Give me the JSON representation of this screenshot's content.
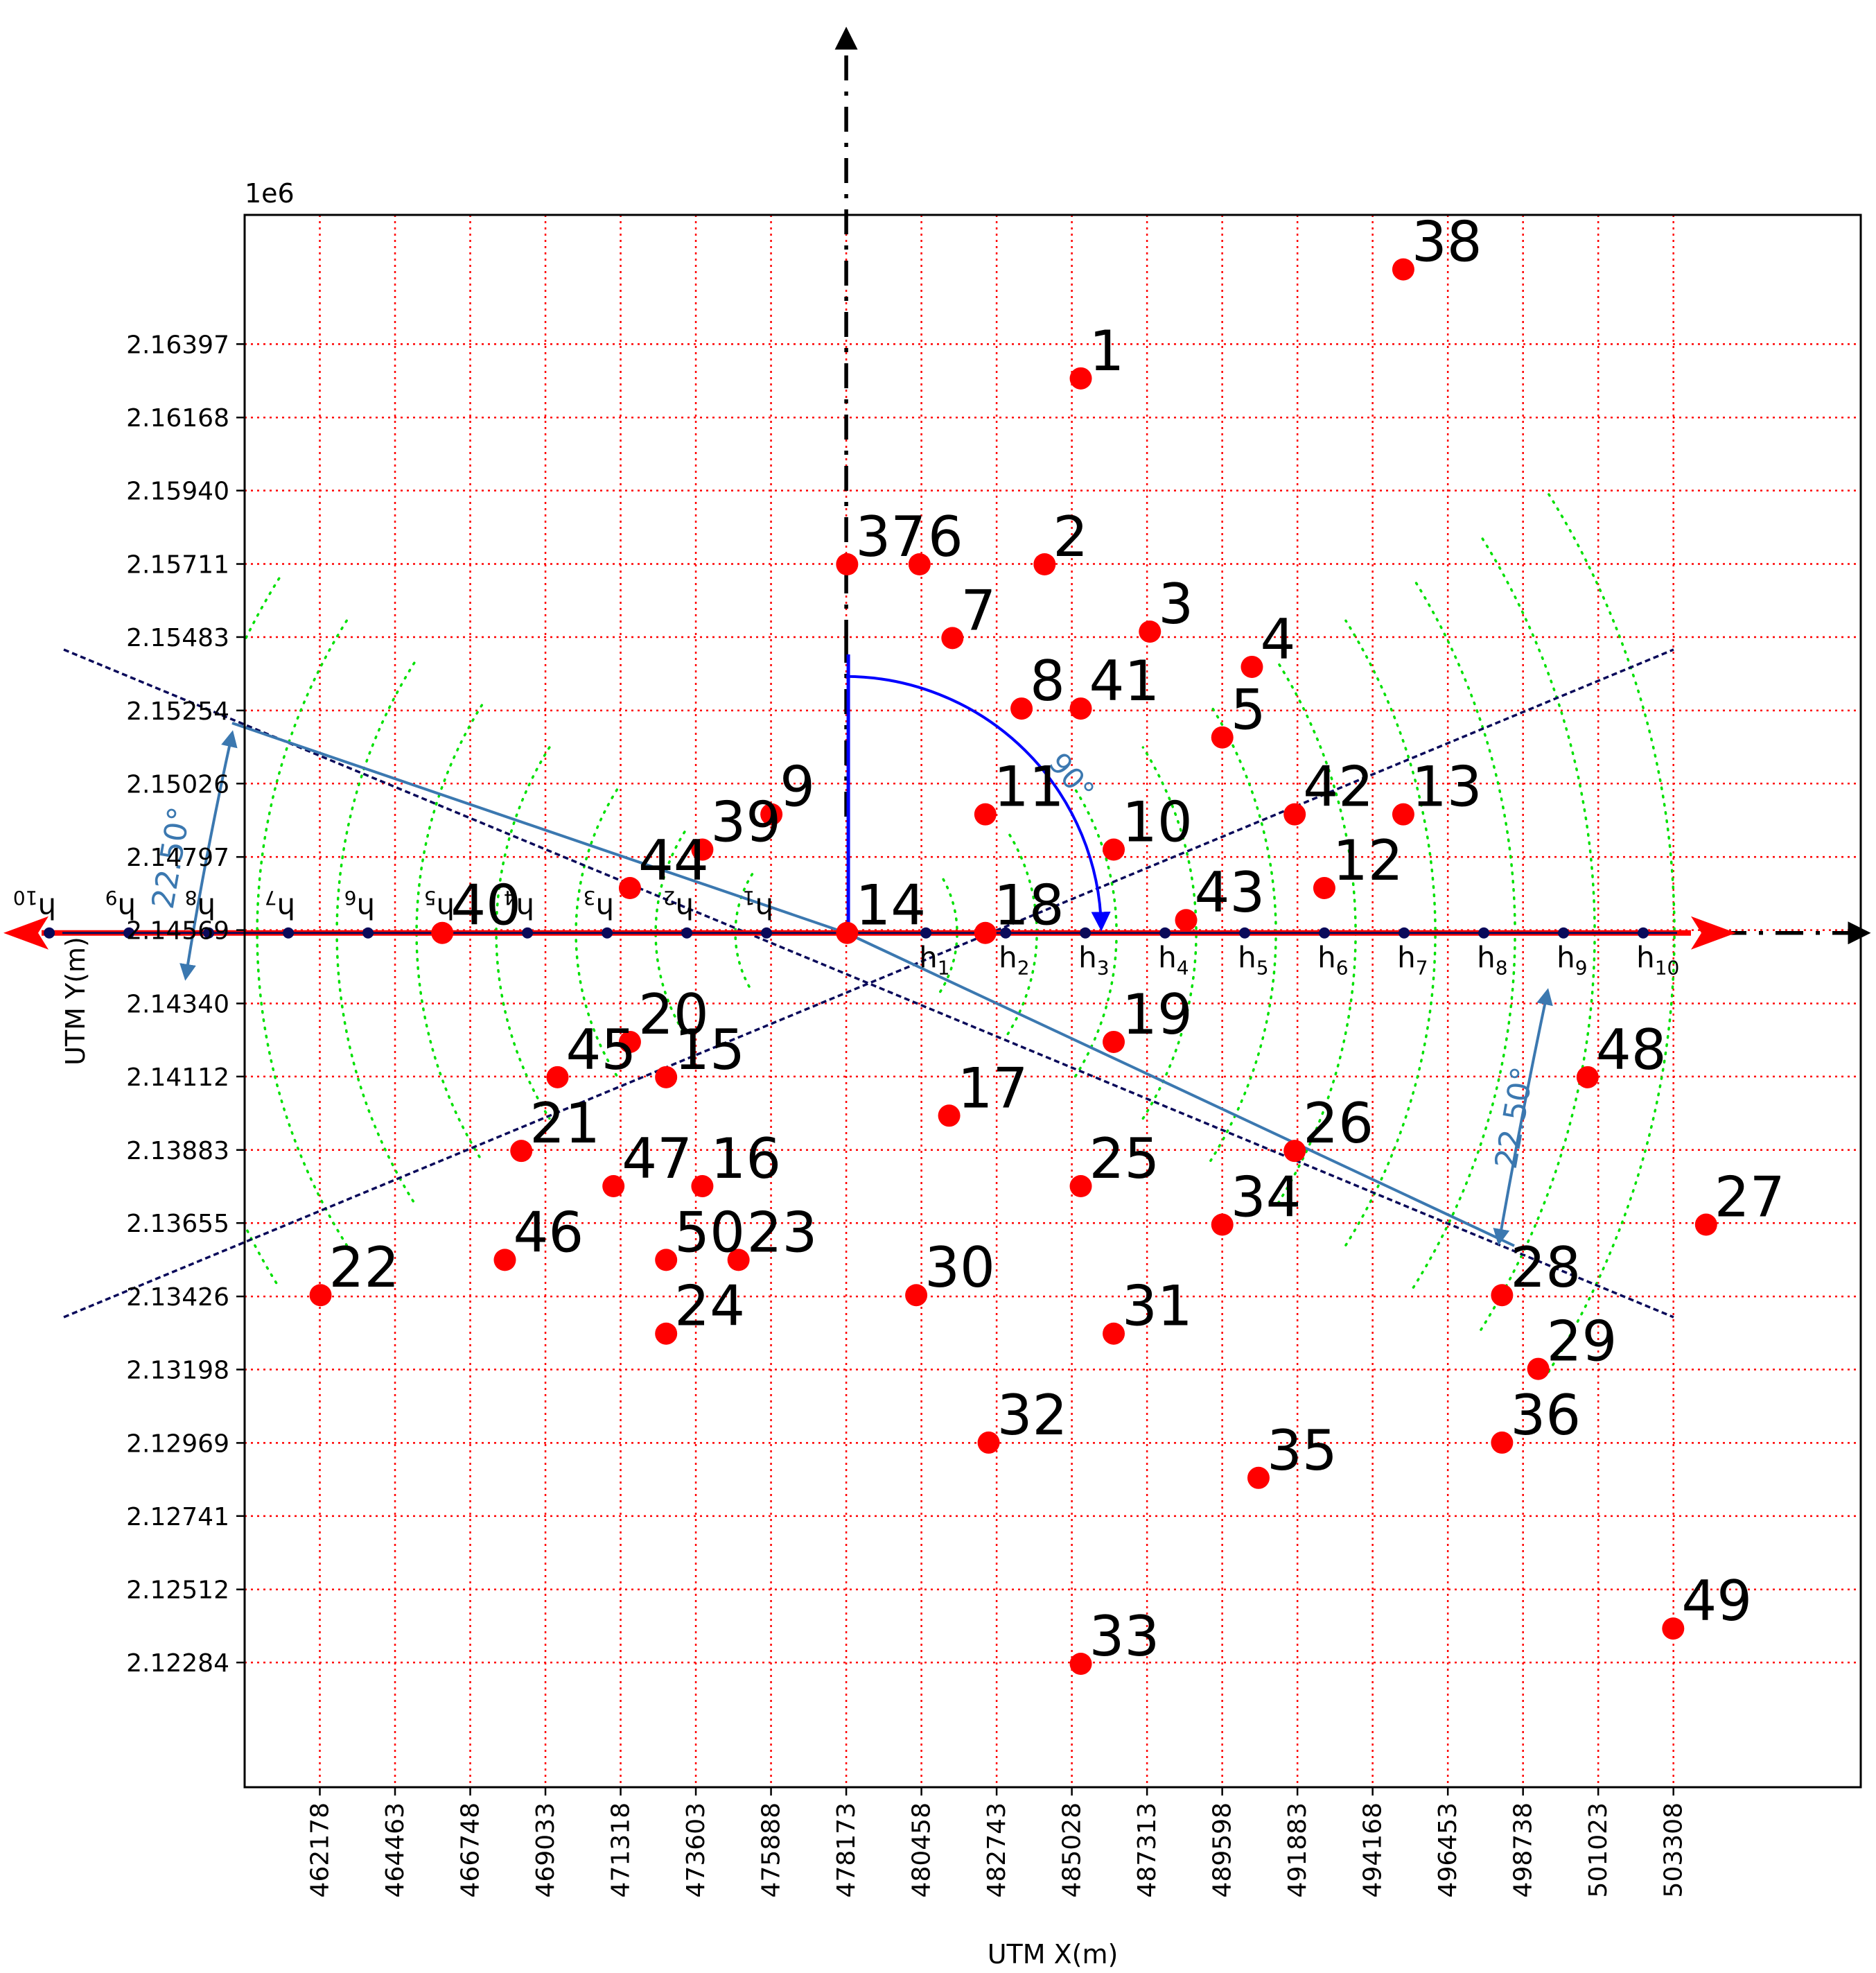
{
  "chart_data": {
    "type": "scatter",
    "title": "",
    "xlabel": "UTM X(m)",
    "ylabel": "UTM Y(m)",
    "y_offset_label": "1e6",
    "xlim": [
      459893,
      509000
    ],
    "ylim": [
      2118950,
      2168000
    ],
    "x_ticks": [
      462178,
      464463,
      466748,
      469033,
      471318,
      473603,
      475888,
      478173,
      480458,
      482743,
      485028,
      487313,
      489598,
      491883,
      494168,
      496453,
      498738,
      501023,
      503308
    ],
    "y_ticks": [
      2.12284,
      2.12512,
      2.12741,
      2.12969,
      2.13198,
      2.13426,
      2.13655,
      2.13883,
      2.14112,
      2.1434,
      2.14569,
      2.14797,
      2.15026,
      2.15254,
      2.15483,
      2.15711,
      2.1594,
      2.16168,
      2.16397
    ],
    "y_tick_labels": [
      "2.12284",
      "2.12512",
      "2.12741",
      "2.12969",
      "2.13198",
      "2.13426",
      "2.13655",
      "2.13883",
      "2.14112",
      "2.14340",
      "2.14569",
      "2.14797",
      "2.15026",
      "2.15254",
      "2.15483",
      "2.15711",
      "2.15940",
      "2.16168",
      "2.16397"
    ],
    "grid": true,
    "points": [
      {
        "id": "1",
        "x": 485300,
        "y": 2162900
      },
      {
        "id": "2",
        "x": 484200,
        "y": 2157100
      },
      {
        "id": "3",
        "x": 487400,
        "y": 2155000
      },
      {
        "id": "4",
        "x": 490500,
        "y": 2153900
      },
      {
        "id": "5",
        "x": 489600,
        "y": 2151700
      },
      {
        "id": "6",
        "x": 480400,
        "y": 2157100
      },
      {
        "id": "7",
        "x": 481400,
        "y": 2154800
      },
      {
        "id": "8",
        "x": 483500,
        "y": 2152600
      },
      {
        "id": "9",
        "x": 475900,
        "y": 2149300
      },
      {
        "id": "10",
        "x": 486300,
        "y": 2148200
      },
      {
        "id": "11",
        "x": 482400,
        "y": 2149300
      },
      {
        "id": "12",
        "x": 492700,
        "y": 2147000
      },
      {
        "id": "13",
        "x": 495100,
        "y": 2149300
      },
      {
        "id": "14",
        "x": 478200,
        "y": 2145600
      },
      {
        "id": "15",
        "x": 472700,
        "y": 2141100
      },
      {
        "id": "16",
        "x": 473800,
        "y": 2137700
      },
      {
        "id": "17",
        "x": 481300,
        "y": 2139900
      },
      {
        "id": "18",
        "x": 482400,
        "y": 2145600
      },
      {
        "id": "19",
        "x": 486300,
        "y": 2142200
      },
      {
        "id": "20",
        "x": 471600,
        "y": 2142200
      },
      {
        "id": "21",
        "x": 468300,
        "y": 2138800
      },
      {
        "id": "22",
        "x": 462200,
        "y": 2134300
      },
      {
        "id": "23",
        "x": 474900,
        "y": 2135400
      },
      {
        "id": "24",
        "x": 472700,
        "y": 2133100
      },
      {
        "id": "25",
        "x": 485300,
        "y": 2137700
      },
      {
        "id": "26",
        "x": 491800,
        "y": 2138800
      },
      {
        "id": "27",
        "x": 504300,
        "y": 2136500
      },
      {
        "id": "28",
        "x": 498100,
        "y": 2134300
      },
      {
        "id": "29",
        "x": 499200,
        "y": 2132000
      },
      {
        "id": "30",
        "x": 480300,
        "y": 2134300
      },
      {
        "id": "31",
        "x": 486300,
        "y": 2133100
      },
      {
        "id": "32",
        "x": 482500,
        "y": 2129700
      },
      {
        "id": "33",
        "x": 485300,
        "y": 2122800
      },
      {
        "id": "34",
        "x": 489600,
        "y": 2136500
      },
      {
        "id": "35",
        "x": 490700,
        "y": 2128600
      },
      {
        "id": "36",
        "x": 498100,
        "y": 2129700
      },
      {
        "id": "37",
        "x": 478200,
        "y": 2157100
      },
      {
        "id": "38",
        "x": 495100,
        "y": 2166300
      },
      {
        "id": "39",
        "x": 473800,
        "y": 2148200
      },
      {
        "id": "40",
        "x": 465900,
        "y": 2145600
      },
      {
        "id": "41",
        "x": 485300,
        "y": 2152600
      },
      {
        "id": "42",
        "x": 491800,
        "y": 2149300
      },
      {
        "id": "43",
        "x": 488500,
        "y": 2146000
      },
      {
        "id": "44",
        "x": 471600,
        "y": 2147000
      },
      {
        "id": "45",
        "x": 469400,
        "y": 2141100
      },
      {
        "id": "46",
        "x": 467800,
        "y": 2135400
      },
      {
        "id": "47",
        "x": 471100,
        "y": 2137700
      },
      {
        "id": "48",
        "x": 500700,
        "y": 2141100
      },
      {
        "id": "49",
        "x": 503300,
        "y": 2123900
      },
      {
        "id": "50",
        "x": 472700,
        "y": 2135400
      }
    ],
    "origin_point": {
      "x": 478173,
      "y": 2145600
    },
    "lag_labels": [
      "h1",
      "h2",
      "h3",
      "h4",
      "h5",
      "h6",
      "h7",
      "h8",
      "h9",
      "h10"
    ],
    "lag_sub_digits": [
      "1",
      "2",
      "3",
      "4",
      "5",
      "6",
      "7",
      "8",
      "9",
      "10"
    ],
    "annotations": {
      "angle_90": "90°",
      "angle_tolerance_right": "22.50°",
      "angle_tolerance_left": "22.50°"
    },
    "colors": {
      "points": "#ff0000",
      "grid": "#ff0000",
      "lag_arcs": "#00e000",
      "tolerance_lines": "#0a0a5a",
      "bandwidth_lines": "#3b78b0",
      "angle_arc": "#0000ff",
      "direction_axis": "#ff0000",
      "lag_dots": "#0a0a5a",
      "angle_annotation": "#3b78b0"
    }
  }
}
